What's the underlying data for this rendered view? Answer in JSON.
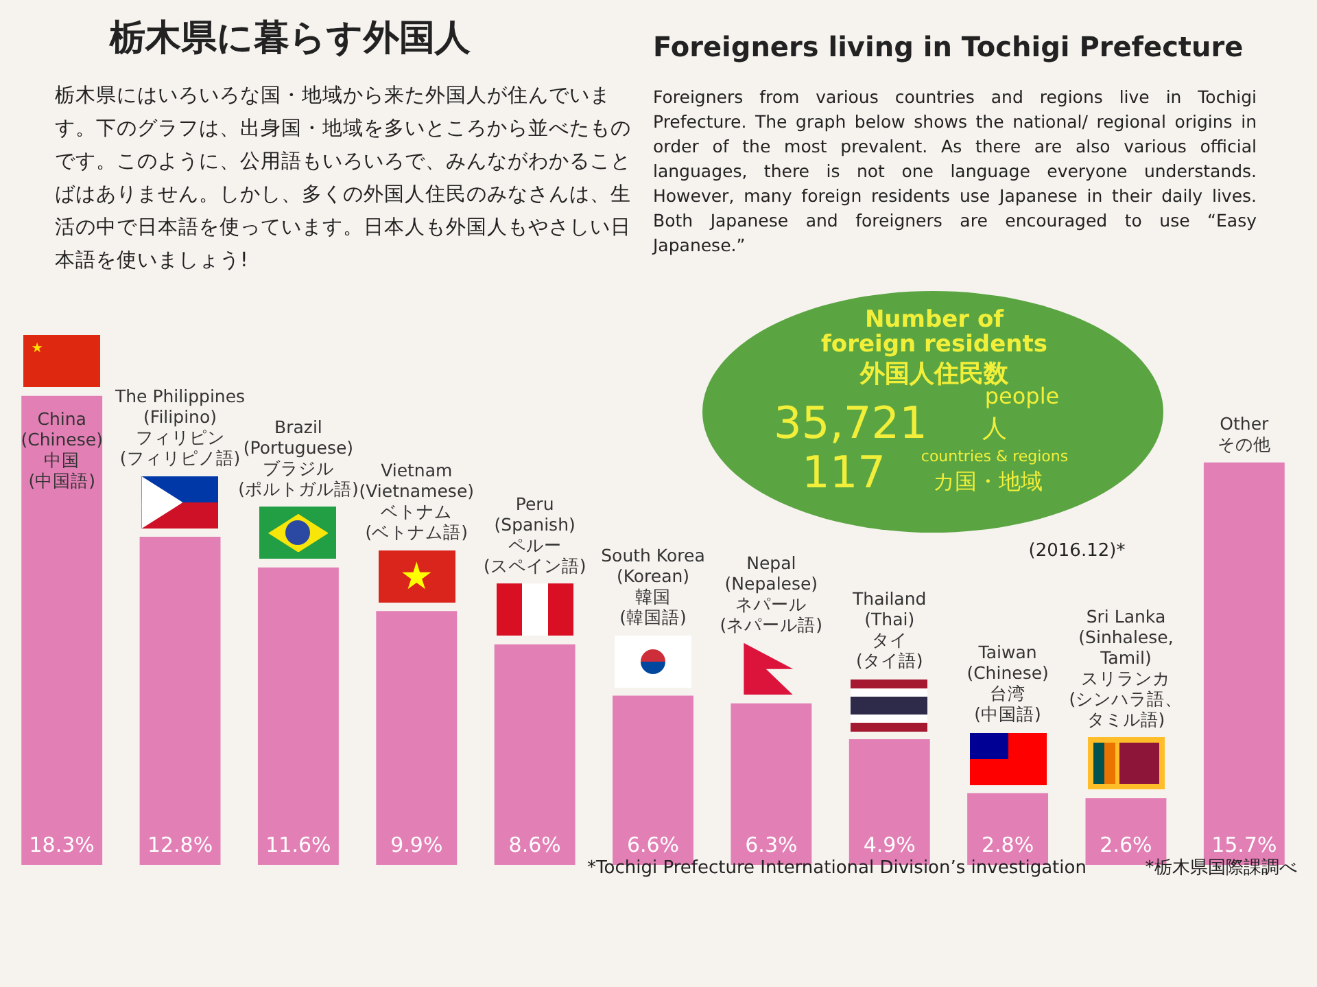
{
  "chart_data": {
    "type": "bar",
    "title": "栃木県に暮らす外国人",
    "subtitle": "Foreigners living in Tochigi Prefecture",
    "categories": [
      "China\n(Chinese)\n中国\n(中国語)",
      "The Philippines\n(Filipino)\nフィリピン\n(フィリピノ語)",
      "Brazil\n(Portuguese)\nブラジル\n(ポルトガル語)",
      "Vietnam\n(Vietnamese)\nベトナム\n(ベトナム語)",
      "Peru\n(Spanish)\nペルー\n(スペイン語)",
      "South Korea\n(Korean)\n韓国\n(韓国語)",
      "Nepal\n(Nepalese)\nネパール\n(ネパール語)",
      "Thailand\n(Thai)\nタイ\n(タイ語)",
      "Taiwan\n(Chinese)\n台湾\n(中国語)",
      "Sri Lanka\n(Sinhalese,\nTamil)\nスリランカ\n(シンハラ語、タミル語)",
      "Other\nその他"
    ],
    "values": [
      18.3,
      12.8,
      11.6,
      9.9,
      8.6,
      6.6,
      6.3,
      4.9,
      2.8,
      2.6,
      15.7
    ],
    "value_labels": [
      "18.3%",
      "12.8%",
      "11.6%",
      "9.9%",
      "8.6%",
      "6.6%",
      "6.3%",
      "4.9%",
      "2.8%",
      "2.6%",
      "15.7%"
    ],
    "color": "#e27fb5",
    "tick_labels": false,
    "annotations": [
      "栃木県にはいろいろな国・地域から来た外国人が住んでいます。下のグラフは、出身国・地域を多いところから並べたものです。このように、公用語もいろいろで、みんながわかることばはありません。しかし、多くの外国人住民のみなさんは、生活の中で日本語を使っています。日本人も外国人もやさしい日本語を使いましょう!",
      "Foreigners from various countries and regions live in Tochigi Prefecture. The graph below shows the national/ regional origins in order of the most prevalent. As there are also various official languages, there is not one language everyone understands. However, many foreign residents use Japanese in their daily lives. Both Japanese and foreigners are encouraged to use “Easy Japanese.”",
      "Number of\nforeign residents",
      "外国人住民数",
      "35,721",
      "people",
      "人",
      "117",
      "countries & regions",
      "カ国・地域",
      "(2016.12)*",
      "*Tochigi Prefecture International Division’s investigation",
      "*栃木県国際課調べ"
    ]
  }
}
